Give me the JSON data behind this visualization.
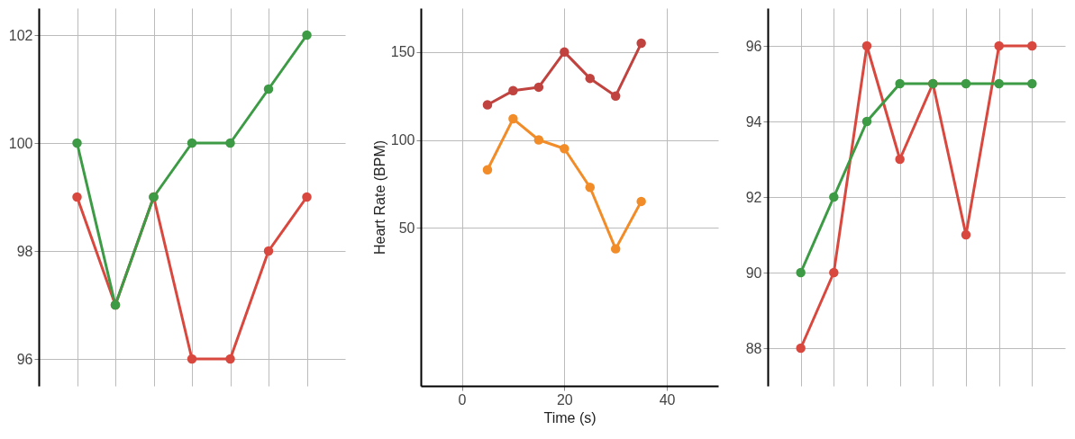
{
  "chart_data": [
    {
      "type": "line",
      "categories": [
        null,
        null,
        null,
        null,
        null,
        null,
        null
      ],
      "ylim": [
        95.5,
        102.5
      ],
      "yticks": [
        96,
        98,
        100,
        102
      ],
      "grid": true,
      "marker": "circle",
      "legend": false,
      "series": [
        {
          "color": "#d9483f",
          "values": [
            99,
            97,
            99,
            96,
            96,
            98,
            99
          ]
        },
        {
          "color": "#3d9a45",
          "values": [
            100,
            97,
            99,
            100,
            100,
            101,
            102
          ]
        }
      ]
    },
    {
      "type": "line",
      "xlabel": "Time (s)",
      "ylabel": "Heart Rate (BPM)",
      "xlim": [
        -8,
        50
      ],
      "xticks": [
        0,
        20,
        40
      ],
      "ylim": [
        -40,
        175
      ],
      "yticks": [
        50,
        100,
        150
      ],
      "grid": true,
      "marker": "circle",
      "legend": false,
      "series": [
        {
          "color": "#c0433f",
          "x": [
            5,
            10,
            15,
            20,
            25,
            30,
            35
          ],
          "values": [
            120,
            128,
            130,
            150,
            135,
            125,
            155
          ]
        },
        {
          "color": "#f28c28",
          "x": [
            5,
            10,
            15,
            20,
            25,
            30,
            35
          ],
          "values": [
            83,
            112,
            100,
            95,
            73,
            38,
            65
          ]
        }
      ]
    },
    {
      "type": "line",
      "categories": [
        null,
        null,
        null,
        null,
        null,
        null,
        null,
        null
      ],
      "ylim": [
        87,
        97
      ],
      "yticks": [
        88,
        90,
        92,
        94,
        96
      ],
      "grid": true,
      "marker": "circle",
      "legend": false,
      "series": [
        {
          "color": "#d9483f",
          "values": [
            88,
            90,
            96,
            93,
            95,
            91,
            96,
            96
          ]
        },
        {
          "color": "#3d9a45",
          "values": [
            90,
            92,
            94,
            95,
            95,
            95,
            95,
            95
          ]
        }
      ]
    }
  ]
}
